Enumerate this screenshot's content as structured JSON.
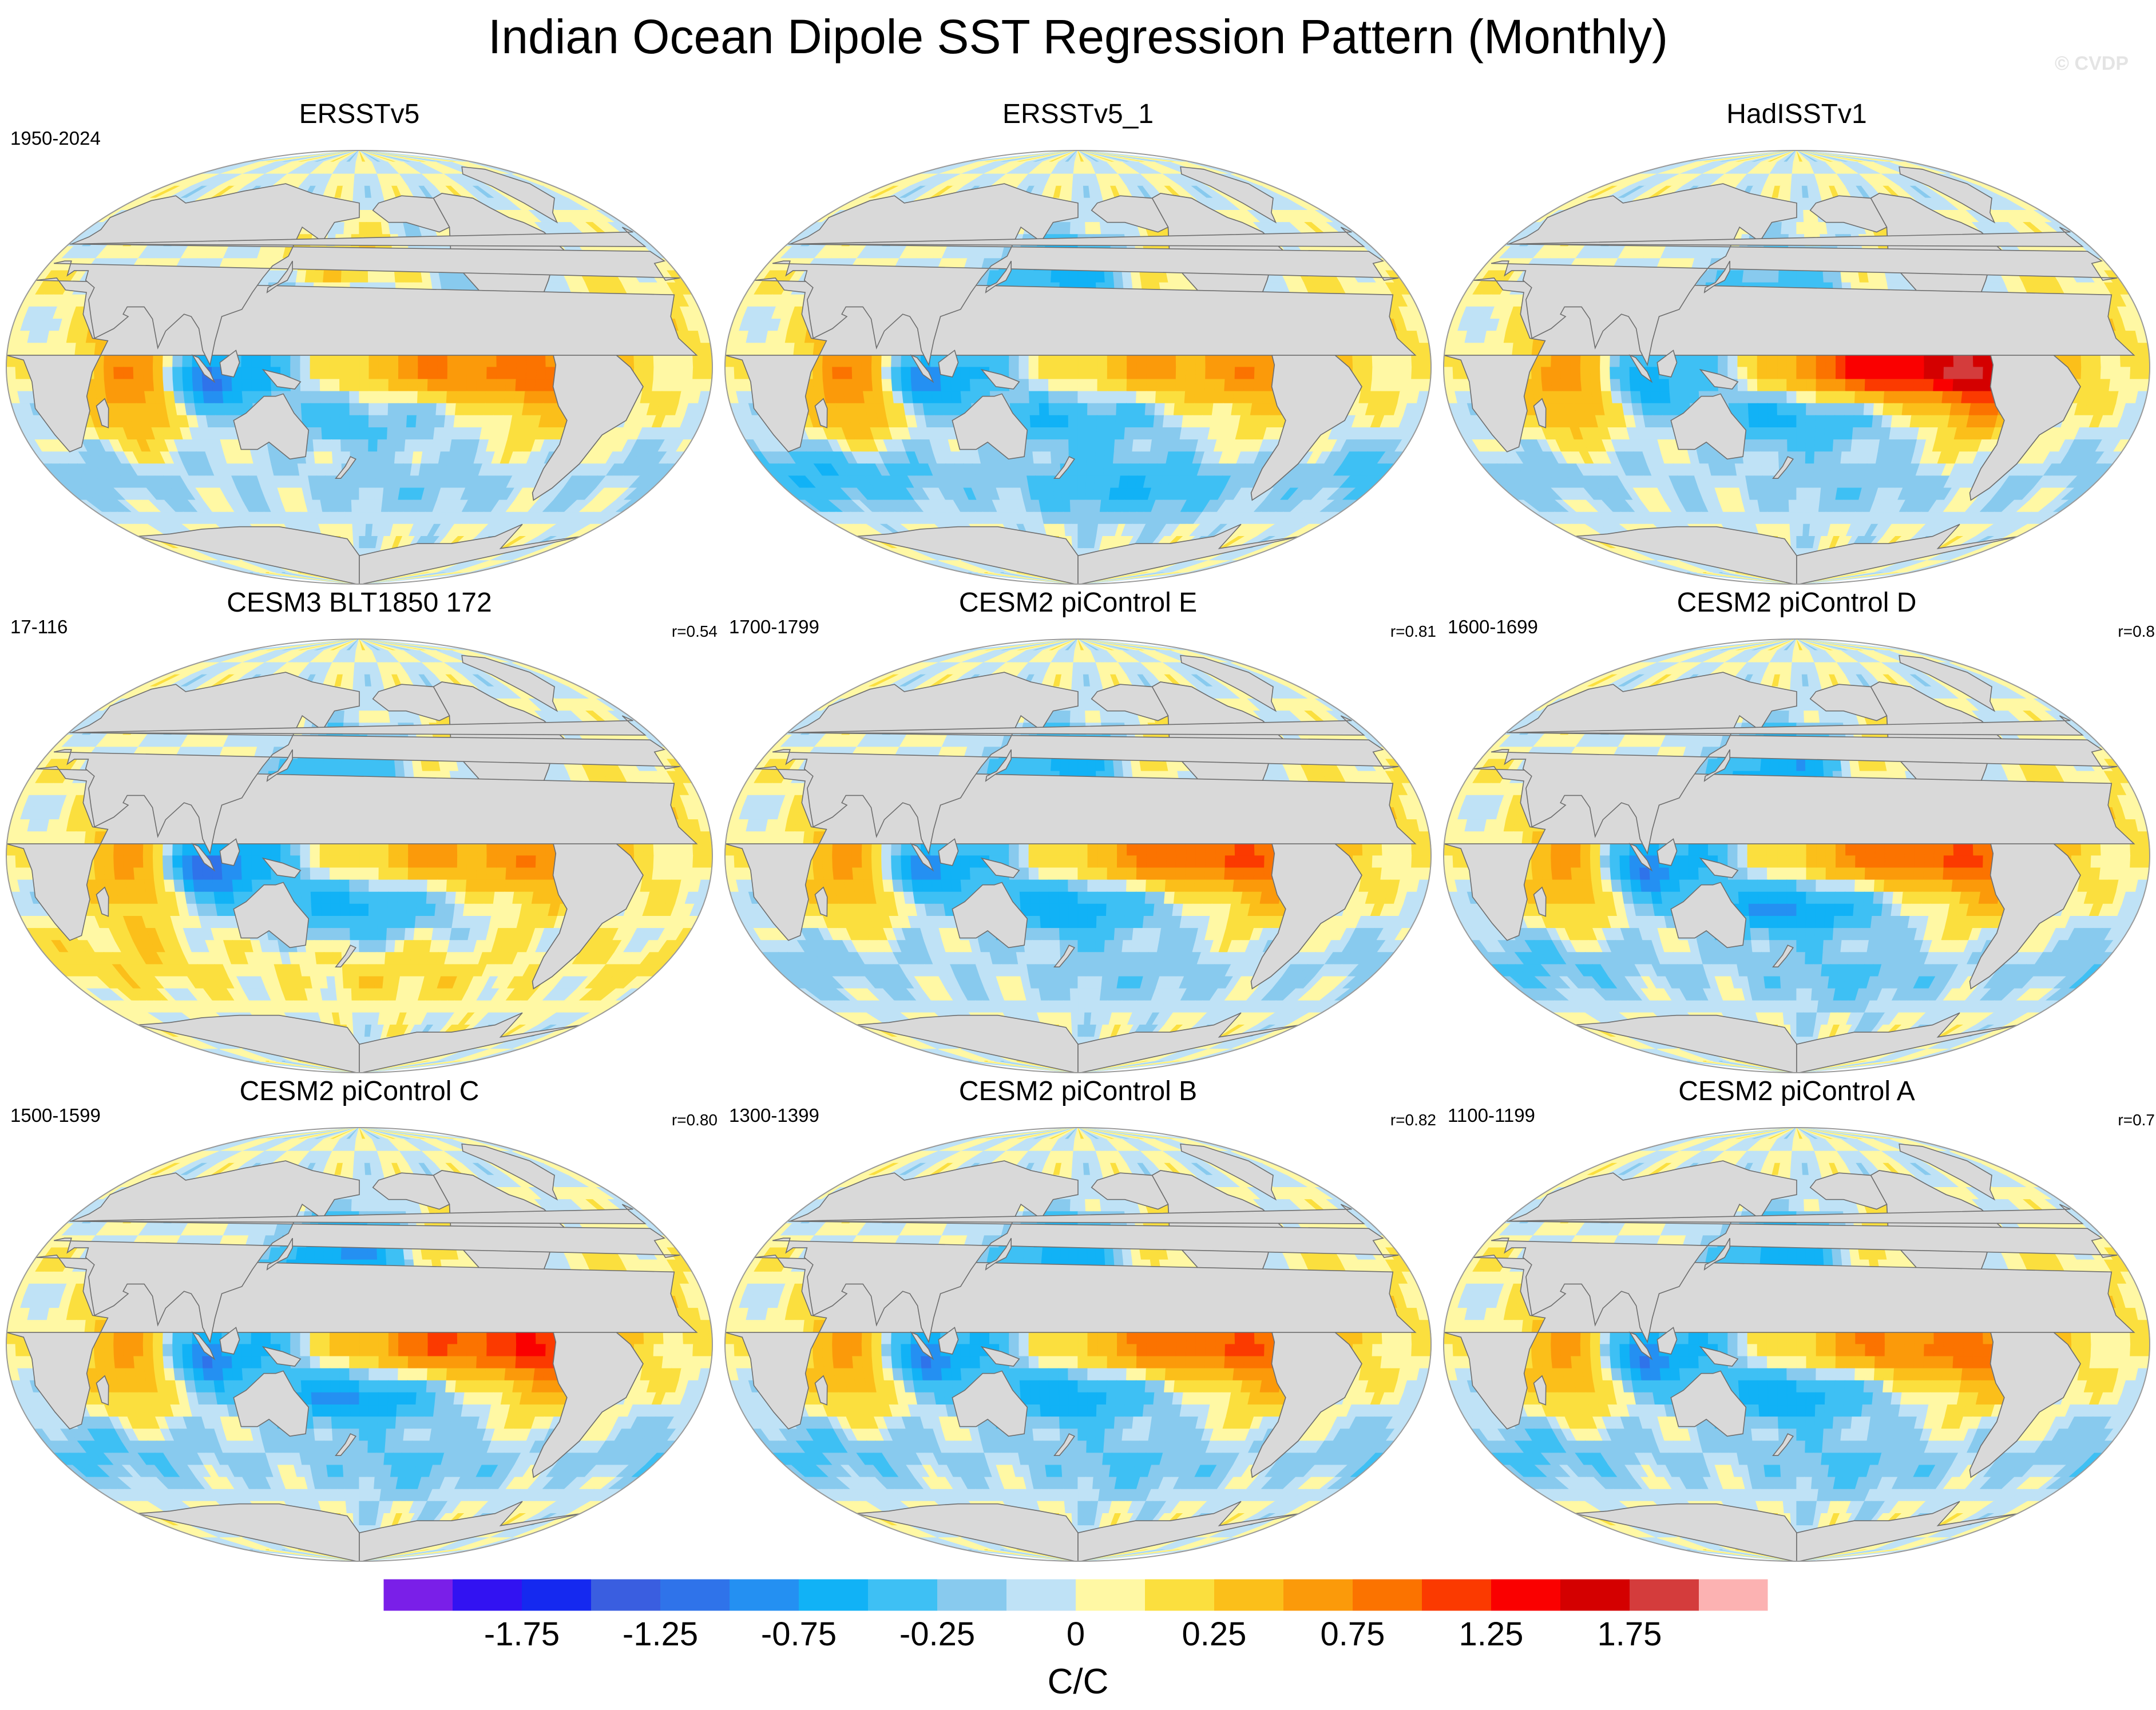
{
  "chart_data": {
    "type": "heatmap",
    "title": "Indian Ocean Dipole SST Regression Pattern (Monthly)",
    "watermark": "© CVDP",
    "projection": "global map",
    "panels": [
      {
        "name": "ERSSTv5",
        "period": "1950-2024",
        "r": "",
        "features": {
          "e_pacific": 0.8,
          "w_pacific_horseshoe": -0.35,
          "sw_indian": 0.7,
          "se_indian": -1.1,
          "north_pacific": 0.3,
          "south_ocean": -0.2
        }
      },
      {
        "name": "ERSSTv5_1",
        "period": "",
        "r": "",
        "features": {
          "e_pacific": 0.6,
          "w_pacific_horseshoe": -0.5,
          "sw_indian": 0.7,
          "se_indian": -0.9,
          "north_pacific": -0.7,
          "south_ocean": -0.5
        }
      },
      {
        "name": "HadISSTv1",
        "period": "",
        "r": "",
        "features": {
          "e_pacific": 1.6,
          "w_pacific_horseshoe": -0.6,
          "sw_indian": 0.6,
          "se_indian": -0.7,
          "north_pacific": -0.3,
          "south_ocean": -0.2
        }
      },
      {
        "name": "CESM3 BLT1850 172",
        "period": "17-116",
        "r": "r=0.54",
        "features": {
          "e_pacific": 0.6,
          "w_pacific_horseshoe": -0.6,
          "sw_indian": 0.5,
          "se_indian": -1.2,
          "north_pacific": -0.4,
          "south_ocean": 0.2
        }
      },
      {
        "name": "CESM2 piControl E",
        "period": "1700-1799",
        "r": "r=0.81",
        "features": {
          "e_pacific": 0.9,
          "w_pacific_horseshoe": -0.7,
          "sw_indian": 0.5,
          "se_indian": -0.9,
          "north_pacific": -0.6,
          "south_ocean": -0.2
        }
      },
      {
        "name": "CESM2 piControl D",
        "period": "1600-1699",
        "r": "r=0.8",
        "features": {
          "e_pacific": 0.9,
          "w_pacific_horseshoe": -0.8,
          "sw_indian": 0.5,
          "se_indian": -1.0,
          "north_pacific": -0.7,
          "south_ocean": -0.3
        }
      },
      {
        "name": "CESM2 piControl C",
        "period": "1500-1599",
        "r": "r=0.80",
        "features": {
          "e_pacific": 1.1,
          "w_pacific_horseshoe": -0.8,
          "sw_indian": 0.5,
          "se_indian": -1.0,
          "north_pacific": -0.8,
          "south_ocean": -0.3
        }
      },
      {
        "name": "CESM2 piControl B",
        "period": "1300-1399",
        "r": "r=0.82",
        "features": {
          "e_pacific": 0.9,
          "w_pacific_horseshoe": -0.7,
          "sw_indian": 0.5,
          "se_indian": -1.0,
          "north_pacific": -0.7,
          "south_ocean": -0.3
        }
      },
      {
        "name": "CESM2 piControl A",
        "period": "1100-1199",
        "r": "r=0.7",
        "features": {
          "e_pacific": 0.8,
          "w_pacific_horseshoe": -0.7,
          "sw_indian": 0.5,
          "se_indian": -1.0,
          "north_pacific": -0.7,
          "south_ocean": -0.3
        }
      }
    ],
    "colorbar": {
      "label": "C/C",
      "levels": [
        -2.0,
        -1.75,
        -1.5,
        -1.25,
        -1.0,
        -0.75,
        -0.5,
        -0.25,
        -0.1,
        0,
        0.1,
        0.25,
        0.5,
        0.75,
        1.0,
        1.25,
        1.5,
        1.75,
        2.0
      ],
      "colors": [
        "#7a1fe8",
        "#3212f2",
        "#1529f0",
        "#3a5ee0",
        "#2f73ea",
        "#2490f2",
        "#11b2f6",
        "#3ec0f4",
        "#88caee",
        "#bfe2f6",
        "#fff8a4",
        "#fbdf3e",
        "#fbbf1a",
        "#fb9a0a",
        "#fb7300",
        "#fb3a00",
        "#fa0000",
        "#d40000",
        "#d43c3c",
        "#fcb2b2"
      ],
      "tick_labels": [
        "-1.75",
        "-1.25",
        "-0.75",
        "-0.25",
        "0",
        "0.25",
        "0.75",
        "1.25",
        "1.75"
      ]
    },
    "land_color": "#d9d9d9"
  }
}
